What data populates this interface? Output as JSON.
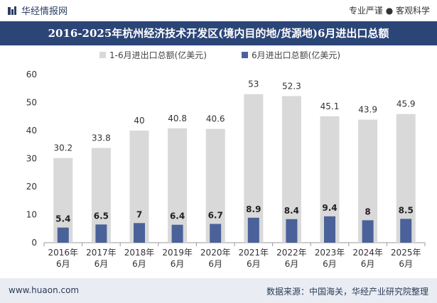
{
  "header": {
    "logo_text": "华经情报网",
    "slogan": "专业严谨 ● 客观科学"
  },
  "footer": {
    "website": "www.huaon.com",
    "source": "数据来源：中国海关，华经产业研究院整理"
  },
  "colors": {
    "title_bg": "#2b4577",
    "series_total": "#d9d9d9",
    "series_june": "#4a6299"
  },
  "chart_data": {
    "type": "bar",
    "title": "2016-2025年杭州经济技术开发区(境内目的地/货源地)6月进出口总额",
    "categories": [
      [
        "2016年",
        "6月"
      ],
      [
        "2017年",
        "6月"
      ],
      [
        "2018年",
        "6月"
      ],
      [
        "2019年",
        "6月"
      ],
      [
        "2020年",
        "6月"
      ],
      [
        "2021年",
        "6月"
      ],
      [
        "2022年",
        "6月"
      ],
      [
        "2023年",
        "6月"
      ],
      [
        "2024年",
        "6月"
      ],
      [
        "2025年",
        "6月"
      ]
    ],
    "series": [
      {
        "name": "1-6月进出口总额(亿美元)",
        "values": [
          30.2,
          33.8,
          40,
          40.8,
          40.6,
          53,
          52.3,
          45.1,
          43.9,
          45.9
        ]
      },
      {
        "name": "6月进出口总额(亿美元)",
        "values": [
          5.4,
          6.5,
          7,
          6.4,
          6.7,
          8.9,
          8.4,
          9.4,
          8,
          8.5
        ]
      }
    ],
    "ylim": [
      0,
      60
    ],
    "yticks": [
      0,
      10,
      20,
      30,
      40,
      50,
      60
    ],
    "legend_position": "top-center",
    "grid": false
  }
}
